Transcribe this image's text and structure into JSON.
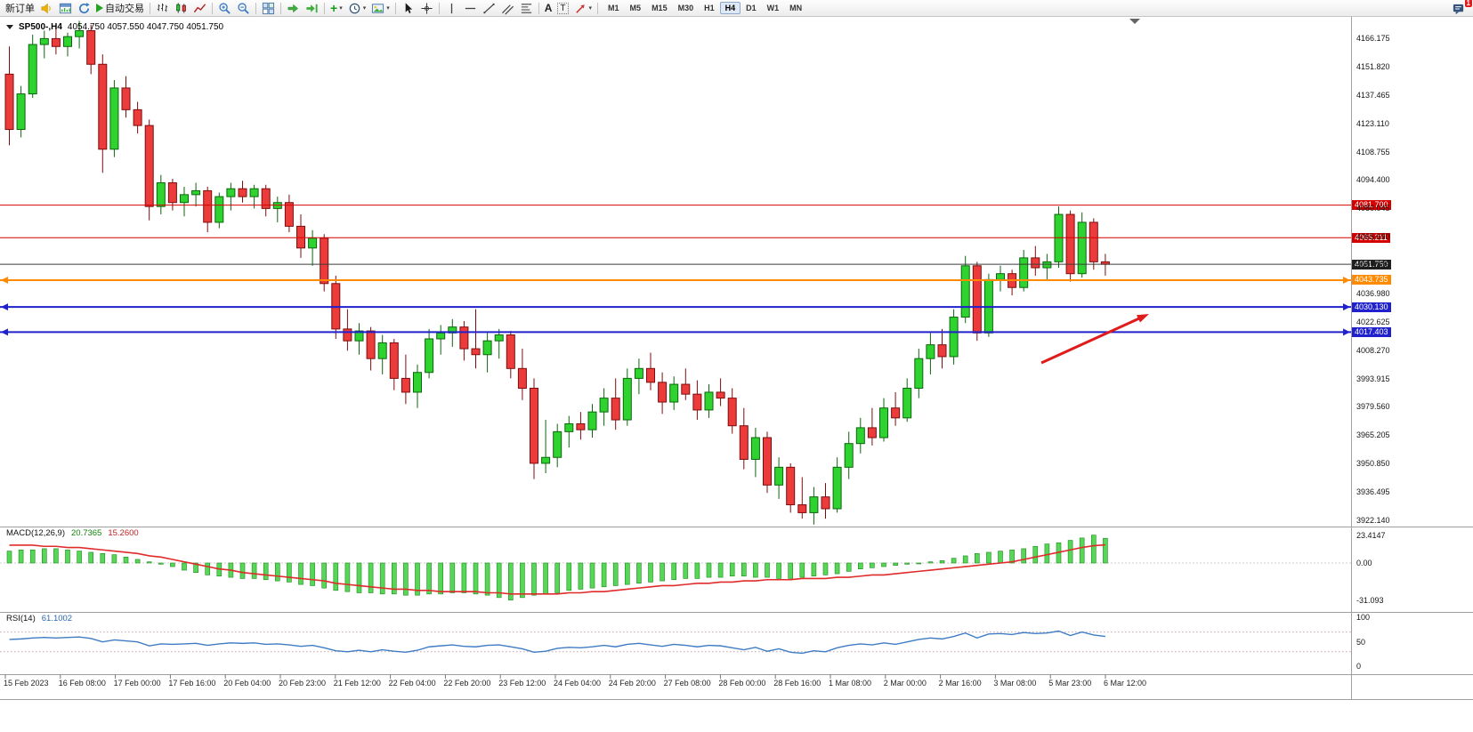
{
  "toolbar": {
    "new_order_label": "新订单",
    "auto_trading_label": "自动交易",
    "timeframes": [
      "M1",
      "M5",
      "M15",
      "M30",
      "H1",
      "H4",
      "D1",
      "W1",
      "MN"
    ],
    "active_timeframe": "H4",
    "notification_count": "1",
    "glyphs": {
      "plus": "+",
      "caret": "▾",
      "text_tool": "A",
      "label_tool": "T"
    },
    "icons": {
      "sound-alert-icon": "yellow horn",
      "new-chart-icon": "chart window",
      "refresh-quotes-icon": "circular arrows",
      "auto-trading-icon": "green play triangle",
      "bar-chart-icon": "ohlc bars",
      "candlestick-chart-icon": "candles",
      "line-chart-icon": "zigzag line",
      "zoom-in-icon": "magnifier plus",
      "zoom-out-icon": "magnifier minus",
      "tile-windows-icon": "window grid",
      "autoscroll-icon": "green right arrow",
      "chart-shift-icon": "green arrow with bar",
      "indicators-add-icon": "green plus",
      "periods-clock-icon": "clock",
      "templates-icon": "picture",
      "cursor-icon": "pointer arrow",
      "crosshair-icon": "crosshair",
      "vertical-line-icon": "vertical line",
      "horizontal-line-icon": "horizontal line",
      "trendline-icon": "diagonal line",
      "channel-icon": "parallel diagonals",
      "fibonacci-icon": "stacked lines",
      "arrows-icon": "red arrow",
      "notifications-icon": "message bubble",
      "one-click-trading-icon": "down triangle",
      "chart-shift-marker-icon": "down triangle marker"
    }
  },
  "chart_data": {
    "type": "candlestick",
    "symbol_period": "SP500-,H4",
    "ohlc_text": "4054.750 4057.550 4047.750 4051.750",
    "open": "4054.750",
    "high": "4057.550",
    "low": "4047.750",
    "close": "4051.750",
    "price_axis_labels": [
      "4166.175",
      "4151.820",
      "4137.465",
      "4123.110",
      "4108.755",
      "4094.400",
      "4080.045",
      "4065.690",
      "4051.335",
      "4036.980",
      "4022.625",
      "4008.270",
      "3993.915",
      "3979.560",
      "3965.205",
      "3950.850",
      "3936.495",
      "3922.140"
    ],
    "time_labels": [
      "15 Feb 2023",
      "16 Feb 08:00",
      "17 Feb 00:00",
      "17 Feb 16:00",
      "20 Feb 04:00",
      "20 Feb 23:00",
      "21 Feb 12:00",
      "22 Feb 04:00",
      "22 Feb 20:00",
      "23 Feb 12:00",
      "24 Feb 04:00",
      "24 Feb 20:00",
      "27 Feb 08:00",
      "28 Feb 00:00",
      "28 Feb 16:00",
      "1 Mar 08:00",
      "2 Mar 00:00",
      "2 Mar 16:00",
      "3 Mar 08:00",
      "5 Mar 23:00",
      "6 Mar 12:00"
    ],
    "price_lines": [
      {
        "value": 4081.7,
        "label": "4081.700",
        "color": "#d40000",
        "badge": "#d40000",
        "width": 1,
        "markers": false
      },
      {
        "value": 4065.211,
        "label": "4065.211",
        "color": "#d40000",
        "badge": "#d40000",
        "width": 1,
        "markers": false
      },
      {
        "value": 4051.75,
        "label": "4051.750",
        "color": "#3c3c3c",
        "badge": "#1f1f1f",
        "width": 1,
        "markers": false
      },
      {
        "value": 4043.735,
        "label": "4043.735",
        "color": "#ff8a00",
        "badge": "#ff8a00",
        "width": 2,
        "markers": true
      },
      {
        "value": 4030.13,
        "label": "4030.130",
        "color": "#2020cc",
        "badge": "#2020cc",
        "width": 2,
        "markers": true
      },
      {
        "value": 4017.403,
        "label": "4017.403",
        "color": "#2020cc",
        "badge": "#2020cc",
        "width": 2,
        "markers": true
      }
    ],
    "candles_ohlc": [
      [
        4148,
        4162,
        4112,
        4120
      ],
      [
        4120,
        4142,
        4116,
        4138
      ],
      [
        4138,
        4168,
        4136,
        4163
      ],
      [
        4163,
        4170,
        4156,
        4166
      ],
      [
        4166,
        4172,
        4158,
        4162
      ],
      [
        4162,
        4169,
        4157,
        4167
      ],
      [
        4167,
        4175,
        4161,
        4170
      ],
      [
        4170,
        4173,
        4148,
        4153
      ],
      [
        4153,
        4158,
        4098,
        4110
      ],
      [
        4110,
        4145,
        4106,
        4141
      ],
      [
        4141,
        4147,
        4126,
        4130
      ],
      [
        4130,
        4134,
        4118,
        4122
      ],
      [
        4122,
        4125,
        4074,
        4081
      ],
      [
        4081,
        4097,
        4077,
        4093
      ],
      [
        4093,
        4095,
        4079,
        4083
      ],
      [
        4083,
        4091,
        4076,
        4087
      ],
      [
        4087,
        4093,
        4081,
        4089
      ],
      [
        4089,
        4091,
        4068,
        4073
      ],
      [
        4073,
        4088,
        4070,
        4086
      ],
      [
        4086,
        4093,
        4079,
        4090
      ],
      [
        4090,
        4094,
        4083,
        4086
      ],
      [
        4086,
        4092,
        4080,
        4090
      ],
      [
        4090,
        4092,
        4076,
        4080
      ],
      [
        4080,
        4086,
        4073,
        4083
      ],
      [
        4083,
        4087,
        4068,
        4071
      ],
      [
        4071,
        4077,
        4055,
        4060
      ],
      [
        4060,
        4069,
        4051,
        4065
      ],
      [
        4065,
        4067,
        4038,
        4042
      ],
      [
        4042,
        4046,
        4014,
        4019
      ],
      [
        4019,
        4029,
        4008,
        4013
      ],
      [
        4013,
        4022,
        4006,
        4018
      ],
      [
        4018,
        4020,
        3998,
        4004
      ],
      [
        4004,
        4016,
        3996,
        4012
      ],
      [
        4012,
        4014,
        3988,
        3994
      ],
      [
        3994,
        4006,
        3981,
        3987
      ],
      [
        3987,
        4001,
        3979,
        3997
      ],
      [
        3997,
        4019,
        3994,
        4014
      ],
      [
        4014,
        4021,
        4006,
        4017
      ],
      [
        4017,
        4024,
        4010,
        4020
      ],
      [
        4020,
        4023,
        4003,
        4009
      ],
      [
        4009,
        4029,
        3999,
        4006
      ],
      [
        4006,
        4017,
        3997,
        4013
      ],
      [
        4013,
        4019,
        4004,
        4016
      ],
      [
        4016,
        4018,
        3994,
        3999
      ],
      [
        3999,
        4009,
        3983,
        3989
      ],
      [
        3989,
        3994,
        3943,
        3951
      ],
      [
        3951,
        3973,
        3946,
        3954
      ],
      [
        3954,
        3971,
        3949,
        3967
      ],
      [
        3967,
        3975,
        3959,
        3971
      ],
      [
        3971,
        3977,
        3963,
        3968
      ],
      [
        3968,
        3981,
        3964,
        3977
      ],
      [
        3977,
        3989,
        3970,
        3984
      ],
      [
        3984,
        3994,
        3968,
        3973
      ],
      [
        3973,
        3999,
        3970,
        3994
      ],
      [
        3994,
        4004,
        3986,
        3999
      ],
      [
        3999,
        4007,
        3988,
        3992
      ],
      [
        3992,
        3997,
        3976,
        3982
      ],
      [
        3982,
        3995,
        3978,
        3991
      ],
      [
        3991,
        3999,
        3983,
        3986
      ],
      [
        3986,
        3993,
        3973,
        3978
      ],
      [
        3978,
        3991,
        3974,
        3987
      ],
      [
        3987,
        3994,
        3980,
        3984
      ],
      [
        3984,
        3989,
        3966,
        3970
      ],
      [
        3970,
        3979,
        3948,
        3953
      ],
      [
        3953,
        3969,
        3944,
        3964
      ],
      [
        3964,
        3967,
        3936,
        3940
      ],
      [
        3940,
        3954,
        3933,
        3949
      ],
      [
        3949,
        3951,
        3926,
        3930
      ],
      [
        3930,
        3944,
        3923,
        3926
      ],
      [
        3926,
        3939,
        3920,
        3934
      ],
      [
        3934,
        3941,
        3923,
        3928
      ],
      [
        3928,
        3954,
        3926,
        3949
      ],
      [
        3949,
        3967,
        3943,
        3961
      ],
      [
        3961,
        3974,
        3956,
        3969
      ],
      [
        3969,
        3979,
        3960,
        3964
      ],
      [
        3964,
        3984,
        3962,
        3979
      ],
      [
        3979,
        3987,
        3970,
        3974
      ],
      [
        3974,
        3994,
        3972,
        3989
      ],
      [
        3989,
        4009,
        3984,
        4004
      ],
      [
        4004,
        4017,
        3996,
        4011
      ],
      [
        4011,
        4019,
        3999,
        4005
      ],
      [
        4005,
        4029,
        4001,
        4025
      ],
      [
        4025,
        4056,
        4022,
        4051
      ],
      [
        4051,
        4053,
        4013,
        4017
      ],
      [
        4017,
        4047,
        4015,
        4044
      ],
      [
        4044,
        4051,
        4038,
        4047
      ],
      [
        4047,
        4049,
        4036,
        4040
      ],
      [
        4040,
        4059,
        4038,
        4055
      ],
      [
        4055,
        4061,
        4046,
        4050
      ],
      [
        4050,
        4057,
        4044,
        4053
      ],
      [
        4053,
        4081,
        4050,
        4077
      ],
      [
        4077,
        4079,
        4043,
        4047
      ],
      [
        4047,
        4078,
        4045,
        4073
      ],
      [
        4073,
        4075,
        4049,
        4053
      ],
      [
        4053,
        4057,
        4046,
        4051.75
      ]
    ],
    "macd": {
      "label": "MACD(12,26,9)",
      "value_main": "20.7365",
      "value_signal": "15.2600",
      "axis_labels": [
        {
          "v": 23.4147,
          "text": "23.4147"
        },
        {
          "v": 0,
          "text": "0.00"
        },
        {
          "v": -31.093,
          "text": "-31.093"
        }
      ],
      "histogram": [
        10,
        11,
        11,
        12,
        12,
        11,
        10,
        9,
        8,
        7,
        5,
        3,
        1,
        -1,
        -3,
        -6,
        -8,
        -10,
        -11,
        -12,
        -13,
        -13,
        -14,
        -15,
        -16,
        -18,
        -19,
        -21,
        -23,
        -24,
        -25,
        -25,
        -26,
        -26,
        -27,
        -27,
        -26,
        -26,
        -25,
        -25,
        -26,
        -27,
        -29,
        -31.09,
        -29,
        -27,
        -26,
        -25,
        -23,
        -22,
        -21,
        -20,
        -19,
        -18,
        -17,
        -16,
        -15,
        -14,
        -13,
        -13,
        -12,
        -12,
        -11,
        -11,
        -12,
        -12,
        -13,
        -13,
        -12,
        -11,
        -10,
        -9,
        -7,
        -5,
        -4,
        -3,
        -2,
        -1,
        0,
        1,
        2,
        4,
        6,
        8,
        9,
        10,
        11,
        12,
        14,
        16,
        17,
        19,
        21,
        23.41,
        20.74
      ],
      "signal": [
        15,
        15,
        15,
        14,
        14,
        13,
        13,
        12,
        11,
        10,
        9,
        8,
        6,
        5,
        3,
        1,
        -1,
        -3,
        -5,
        -6,
        -8,
        -9,
        -10,
        -11,
        -12,
        -13,
        -14,
        -15,
        -17,
        -18,
        -19,
        -20,
        -21,
        -22,
        -22,
        -23,
        -23,
        -24,
        -24,
        -24,
        -24,
        -25,
        -25,
        -26,
        -26,
        -26,
        -26,
        -26,
        -25,
        -25,
        -24,
        -24,
        -23,
        -22,
        -21,
        -20,
        -19,
        -19,
        -18,
        -17,
        -17,
        -16,
        -16,
        -15,
        -15,
        -14,
        -14,
        -14,
        -13,
        -13,
        -13,
        -12,
        -12,
        -11,
        -10,
        -10,
        -9,
        -8,
        -7,
        -6,
        -5,
        -4,
        -3,
        -2,
        -1,
        0,
        1,
        3,
        5,
        7,
        9,
        11,
        13,
        14.5,
        15.26
      ]
    },
    "rsi": {
      "label": "RSI(14)",
      "value": "61.1002",
      "axis_labels": [
        {
          "v": 100,
          "text": "100"
        },
        {
          "v": 50,
          "text": "50"
        },
        {
          "v": 0,
          "text": "0"
        }
      ],
      "levels": [
        30,
        70
      ],
      "values": [
        55,
        56,
        58,
        59,
        58,
        59,
        60,
        57,
        50,
        54,
        52,
        50,
        42,
        46,
        45,
        46,
        47,
        43,
        46,
        48,
        47,
        48,
        45,
        46,
        44,
        41,
        43,
        38,
        32,
        30,
        33,
        30,
        34,
        31,
        29,
        33,
        40,
        42,
        44,
        41,
        40,
        43,
        44,
        40,
        36,
        29,
        31,
        37,
        39,
        38,
        40,
        43,
        40,
        45,
        47,
        44,
        41,
        45,
        43,
        40,
        43,
        42,
        38,
        34,
        39,
        31,
        36,
        29,
        27,
        32,
        30,
        38,
        43,
        46,
        44,
        48,
        45,
        50,
        55,
        58,
        56,
        61,
        68,
        58,
        66,
        67,
        65,
        69,
        67,
        68,
        72,
        63,
        70,
        64,
        61.1
      ]
    },
    "annotation_arrow_color": "#e01b1b"
  }
}
